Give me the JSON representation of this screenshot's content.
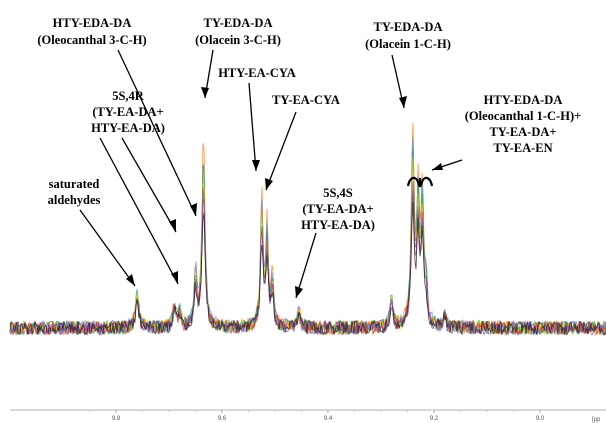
{
  "chart_data": {
    "type": "line",
    "title": "",
    "xlabel": "",
    "ylabel": "",
    "x_unit_label": "[pp",
    "xlim": [
      8.83,
      9.0
    ],
    "x_reversed": true,
    "ticks": [
      {
        "value": 9.8,
        "label": "9.8"
      },
      {
        "value": 9.6,
        "label": "9.6"
      },
      {
        "value": 9.4,
        "label": "9.4"
      },
      {
        "value": 9.2,
        "label": "9.2"
      },
      {
        "value": 9.0,
        "label": "9.0"
      }
    ],
    "baseline_relative": 0.0,
    "peaks": [
      {
        "ppm": 9.76,
        "height": 0.16,
        "width": 0.004
      },
      {
        "ppm": 9.69,
        "height": 0.11,
        "width": 0.003
      },
      {
        "ppm": 9.68,
        "height": 0.08,
        "width": 0.003
      },
      {
        "ppm": 9.65,
        "height": 0.24,
        "width": 0.003
      },
      {
        "ppm": 9.635,
        "height": 0.78,
        "width": 0.0035
      },
      {
        "ppm": 9.525,
        "height": 0.55,
        "width": 0.003
      },
      {
        "ppm": 9.515,
        "height": 0.42,
        "width": 0.003
      },
      {
        "ppm": 9.505,
        "height": 0.2,
        "width": 0.003
      },
      {
        "ppm": 9.455,
        "height": 0.08,
        "width": 0.003
      },
      {
        "ppm": 9.28,
        "height": 0.14,
        "width": 0.003
      },
      {
        "ppm": 9.24,
        "height": 0.79,
        "width": 0.0035
      },
      {
        "ppm": 9.23,
        "height": 0.52,
        "width": 0.003
      },
      {
        "ppm": 9.222,
        "height": 0.55,
        "width": 0.003
      },
      {
        "ppm": 9.215,
        "height": 0.16,
        "width": 0.003
      },
      {
        "ppm": 9.18,
        "height": 0.06,
        "width": 0.003
      }
    ],
    "series": [
      {
        "color": "#ff7f2a"
      },
      {
        "color": "#4d8fd6"
      },
      {
        "color": "#2e9e3a"
      },
      {
        "color": "#d9d92a"
      },
      {
        "color": "#d23a3a"
      },
      {
        "color": "#7a4fb5"
      },
      {
        "color": "#222222"
      }
    ],
    "annotations": [
      {
        "id": "htyedada",
        "lines": [
          "HTY-EDA-DA",
          "(Oleocanthal 3-C-H)"
        ]
      },
      {
        "id": "tyedada-3",
        "lines": [
          "TY-EDA-DA",
          "(Olacein 3-C-H)"
        ]
      },
      {
        "id": "5s4r",
        "lines": [
          "5S,4R",
          "(TY-EA-DA+",
          "HTY-EA-DA)"
        ]
      },
      {
        "id": "htyeacya",
        "lines": [
          "HTY-EA-CYA"
        ]
      },
      {
        "id": "tyeacya",
        "lines": [
          "TY-EA-CYA"
        ]
      },
      {
        "id": "saturated",
        "lines": [
          "saturated",
          "aldehydes"
        ]
      },
      {
        "id": "5s4s",
        "lines": [
          "5S,4S",
          "(TY-EA-DA+",
          "HTY-EA-DA)"
        ]
      },
      {
        "id": "tyedada-1",
        "lines": [
          "TY-EDA-DA",
          "(Olacein 1-C-H)"
        ]
      },
      {
        "id": "oleocanthal1",
        "lines": [
          "HTY-EDA-DA",
          "(Oleocanthal 1-C-H)+",
          "TY-EA-DA+",
          "TY-EA-EN"
        ]
      }
    ]
  }
}
